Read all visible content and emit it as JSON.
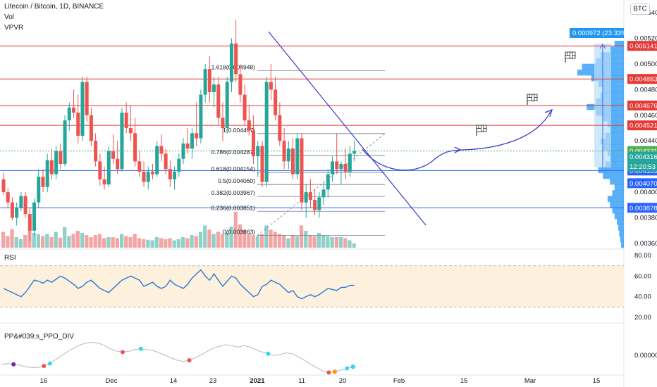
{
  "header": {
    "symbol_line": "Litecoin / Bitcoin, 1D, BINANCE",
    "indicator_vol": "Vol",
    "indicator_vpvr": "VPVR",
    "currency": "BTC"
  },
  "colors": {
    "up": "#26a69a",
    "down": "#ef5350",
    "vol_up": "#8fd0c8",
    "vol_down": "#f3a4a4",
    "hline_red": "#e53935",
    "hline_blue": "#2962ff",
    "hline_green": "#4caf50",
    "trend": "#3b3bcf",
    "rsi_line": "#2a7bd6",
    "rsi_band": "#fdf0dc",
    "vpvr": "#2196f3"
  },
  "chart_data": [
    {
      "type": "candlestick",
      "x_ticks": [
        "16",
        "Dec",
        "14",
        "23",
        "2021",
        "11",
        "20",
        "Feb",
        "15",
        "Mar",
        "15"
      ],
      "y_ticks": [
        "0.003600",
        "0.003800",
        "0.004000",
        "0.004200",
        "0.004400",
        "0.004600",
        "0.004800",
        "0.005000",
        "0.005200",
        "0.005400"
      ],
      "ylim": [
        0.0036,
        0.0054
      ],
      "y_scale": "linear",
      "ohlc": [
        [
          0.0041,
          0.00415,
          0.00398,
          0.004
        ],
        [
          0.004,
          0.00403,
          0.00388,
          0.00392
        ],
        [
          0.00392,
          0.00396,
          0.00378,
          0.0038
        ],
        [
          0.0038,
          0.00392,
          0.00374,
          0.00388
        ],
        [
          0.00388,
          0.004,
          0.00385,
          0.00397
        ],
        [
          0.00397,
          0.004,
          0.0038,
          0.00383
        ],
        [
          0.00383,
          0.00388,
          0.00362,
          0.0037
        ],
        [
          0.0037,
          0.00395,
          0.00366,
          0.00392
        ],
        [
          0.00392,
          0.00418,
          0.00388,
          0.00412
        ],
        [
          0.00412,
          0.00418,
          0.004,
          0.00404
        ],
        [
          0.00404,
          0.0043,
          0.004,
          0.00425
        ],
        [
          0.00425,
          0.00434,
          0.0041,
          0.00414
        ],
        [
          0.00414,
          0.00436,
          0.0041,
          0.00432
        ],
        [
          0.00432,
          0.00438,
          0.00418,
          0.00422
        ],
        [
          0.00422,
          0.0046,
          0.0042,
          0.00456
        ],
        [
          0.00456,
          0.0047,
          0.00448,
          0.00466
        ],
        [
          0.00466,
          0.0048,
          0.00458,
          0.00462
        ],
        [
          0.00462,
          0.00476,
          0.00438,
          0.00444
        ],
        [
          0.00444,
          0.0049,
          0.0044,
          0.00486
        ],
        [
          0.00486,
          0.0049,
          0.00455,
          0.0046
        ],
        [
          0.0046,
          0.00466,
          0.00436,
          0.0044
        ],
        [
          0.0044,
          0.00446,
          0.0042,
          0.00424
        ],
        [
          0.00424,
          0.0043,
          0.00405,
          0.0041
        ],
        [
          0.0041,
          0.0042,
          0.00402,
          0.00406
        ],
        [
          0.00406,
          0.00436,
          0.00404,
          0.00432
        ],
        [
          0.00432,
          0.00445,
          0.00422,
          0.00426
        ],
        [
          0.00426,
          0.0044,
          0.00414,
          0.00418
        ],
        [
          0.00418,
          0.00466,
          0.00416,
          0.00462
        ],
        [
          0.00462,
          0.0047,
          0.00446,
          0.0045
        ],
        [
          0.0045,
          0.00468,
          0.0044,
          0.00446
        ],
        [
          0.00446,
          0.00458,
          0.0042,
          0.00424
        ],
        [
          0.00424,
          0.00432,
          0.00412,
          0.00416
        ],
        [
          0.00416,
          0.00424,
          0.00404,
          0.00408
        ],
        [
          0.00408,
          0.0042,
          0.00402,
          0.00416
        ],
        [
          0.00416,
          0.00422,
          0.0041,
          0.00414
        ],
        [
          0.00414,
          0.0044,
          0.00412,
          0.00436
        ],
        [
          0.00436,
          0.00445,
          0.00424,
          0.0043
        ],
        [
          0.0043,
          0.00434,
          0.00414,
          0.00418
        ],
        [
          0.00418,
          0.00425,
          0.00404,
          0.0041
        ],
        [
          0.0041,
          0.0042,
          0.00402,
          0.00416
        ],
        [
          0.00416,
          0.0043,
          0.00412,
          0.00426
        ],
        [
          0.00426,
          0.00442,
          0.00422,
          0.00438
        ],
        [
          0.00438,
          0.0045,
          0.0043,
          0.00434
        ],
        [
          0.00434,
          0.0045,
          0.00426,
          0.00446
        ],
        [
          0.00446,
          0.0047,
          0.00436,
          0.00442
        ],
        [
          0.00442,
          0.0048,
          0.00438,
          0.00476
        ],
        [
          0.00476,
          0.005,
          0.0047,
          0.00496
        ],
        [
          0.00496,
          0.00506,
          0.0047,
          0.00478
        ],
        [
          0.00478,
          0.0049,
          0.00466,
          0.00484
        ],
        [
          0.00484,
          0.0049,
          0.00452,
          0.00458
        ],
        [
          0.00458,
          0.0047,
          0.0044,
          0.0045
        ],
        [
          0.0045,
          0.0049,
          0.00446,
          0.00486
        ],
        [
          0.00486,
          0.0052,
          0.00478,
          0.00516
        ],
        [
          0.00516,
          0.00534,
          0.00486,
          0.00492
        ],
        [
          0.00492,
          0.005,
          0.0047,
          0.00476
        ],
        [
          0.00476,
          0.00484,
          0.00452,
          0.00456
        ],
        [
          0.00456,
          0.00468,
          0.00444,
          0.00448
        ],
        [
          0.00448,
          0.0046,
          0.00422,
          0.00428
        ],
        [
          0.00428,
          0.0044,
          0.00412,
          0.00436
        ],
        [
          0.00436,
          0.0044,
          0.00404,
          0.00408
        ],
        [
          0.00408,
          0.0049,
          0.00404,
          0.00486
        ],
        [
          0.00486,
          0.005,
          0.00472,
          0.0048
        ],
        [
          0.0048,
          0.0049,
          0.00456,
          0.0046
        ],
        [
          0.0046,
          0.0047,
          0.00436,
          0.0044
        ],
        [
          0.0044,
          0.0045,
          0.00418,
          0.00424
        ],
        [
          0.00424,
          0.0044,
          0.00418,
          0.00434
        ],
        [
          0.00434,
          0.00442,
          0.0041,
          0.00414
        ],
        [
          0.00414,
          0.00446,
          0.0041,
          0.00442
        ],
        [
          0.00442,
          0.00446,
          0.00386,
          0.00392
        ],
        [
          0.00392,
          0.00406,
          0.0038,
          0.004
        ],
        [
          0.004,
          0.0041,
          0.00388,
          0.00394
        ],
        [
          0.00394,
          0.00402,
          0.00382,
          0.00386
        ],
        [
          0.00386,
          0.004,
          0.0038,
          0.00396
        ],
        [
          0.00396,
          0.00408,
          0.0039,
          0.00402
        ],
        [
          0.00402,
          0.00418,
          0.00396,
          0.00414
        ],
        [
          0.00414,
          0.00428,
          0.00408,
          0.00424
        ],
        [
          0.00424,
          0.00446,
          0.00414,
          0.00418
        ],
        [
          0.00418,
          0.00424,
          0.00406,
          0.00422
        ],
        [
          0.00422,
          0.00434,
          0.0041,
          0.00416
        ],
        [
          0.00416,
          0.00436,
          0.00412,
          0.0043
        ],
        [
          0.0043,
          0.0044,
          0.00424,
          0.00432
        ]
      ],
      "volume": [
        [
          3.0,
          0
        ],
        [
          2.2,
          0
        ],
        [
          3.5,
          0
        ],
        [
          2.0,
          1
        ],
        [
          1.6,
          1
        ],
        [
          2.4,
          0
        ],
        [
          3.4,
          0
        ],
        [
          2.8,
          1
        ],
        [
          2.6,
          1
        ],
        [
          2.2,
          0
        ],
        [
          2.6,
          1
        ],
        [
          2.0,
          0
        ],
        [
          3.0,
          1
        ],
        [
          1.9,
          0
        ],
        [
          3.9,
          1
        ],
        [
          2.2,
          1
        ],
        [
          2.6,
          0
        ],
        [
          3.2,
          0
        ],
        [
          2.8,
          1
        ],
        [
          2.4,
          0
        ],
        [
          2.0,
          0
        ],
        [
          2.4,
          0
        ],
        [
          2.6,
          0
        ],
        [
          1.8,
          0
        ],
        [
          2.0,
          1
        ],
        [
          2.0,
          0
        ],
        [
          1.8,
          0
        ],
        [
          2.6,
          1
        ],
        [
          2.2,
          0
        ],
        [
          2.0,
          0
        ],
        [
          2.6,
          0
        ],
        [
          1.8,
          0
        ],
        [
          1.6,
          0
        ],
        [
          1.5,
          1
        ],
        [
          1.4,
          1
        ],
        [
          2.0,
          1
        ],
        [
          1.8,
          0
        ],
        [
          1.6,
          0
        ],
        [
          1.8,
          0
        ],
        [
          1.4,
          1
        ],
        [
          1.6,
          1
        ],
        [
          2.0,
          1
        ],
        [
          1.8,
          0
        ],
        [
          2.4,
          1
        ],
        [
          2.2,
          0
        ],
        [
          3.0,
          1
        ],
        [
          4.2,
          1
        ],
        [
          3.4,
          0
        ],
        [
          2.6,
          1
        ],
        [
          3.0,
          0
        ],
        [
          2.6,
          0
        ],
        [
          2.8,
          1
        ],
        [
          4.0,
          1
        ],
        [
          6.8,
          0
        ],
        [
          4.4,
          0
        ],
        [
          3.4,
          0
        ],
        [
          2.6,
          0
        ],
        [
          2.4,
          0
        ],
        [
          2.2,
          1
        ],
        [
          2.6,
          0
        ],
        [
          4.2,
          1
        ],
        [
          3.4,
          0
        ],
        [
          3.0,
          0
        ],
        [
          2.6,
          0
        ],
        [
          2.4,
          0
        ],
        [
          1.8,
          1
        ],
        [
          2.4,
          0
        ],
        [
          2.2,
          1
        ],
        [
          4.2,
          0
        ],
        [
          3.2,
          1
        ],
        [
          2.4,
          0
        ],
        [
          2.2,
          0
        ],
        [
          2.8,
          1
        ],
        [
          2.4,
          1
        ],
        [
          2.2,
          1
        ],
        [
          2.0,
          1
        ],
        [
          2.0,
          0
        ],
        [
          2.0,
          1
        ],
        [
          1.8,
          0
        ],
        [
          1.4,
          1
        ],
        [
          0.8,
          1
        ]
      ]
    },
    {
      "type": "line",
      "name": "RSI",
      "y_ticks": [
        "20.00",
        "40.00",
        "60.00",
        "80.00"
      ],
      "ylim": [
        20,
        80
      ],
      "band": [
        30,
        70
      ],
      "values": [
        48,
        46,
        44,
        42,
        40,
        44,
        50,
        56,
        55,
        53,
        56,
        54,
        57,
        60,
        58,
        55,
        52,
        48,
        50,
        54,
        56,
        52,
        48,
        46,
        44,
        48,
        52,
        56,
        58,
        60,
        58,
        56,
        50,
        52,
        54,
        50,
        48,
        50,
        56,
        52,
        50,
        48,
        52,
        58,
        62,
        66,
        60,
        56,
        62,
        56,
        50,
        55,
        60,
        58,
        52,
        48,
        44,
        40,
        42,
        50,
        52,
        56,
        54,
        52,
        48,
        44,
        46,
        40,
        38,
        40,
        42,
        40,
        42,
        45,
        48,
        47,
        46,
        49,
        49,
        51,
        51
      ]
    },
    {
      "type": "line",
      "name": "PP&#039;s_PPO_DIV",
      "y_ticks": [
        "0.000000"
      ],
      "divergence_points": [
        {
          "i": 2,
          "v": -0.22,
          "c": "#7b1fa2"
        },
        {
          "i": 7,
          "v": -0.3,
          "c": "#ef5350"
        },
        {
          "i": 8,
          "v": -0.3,
          "c": "#33d6f5"
        },
        {
          "i": 20,
          "v": 0.32,
          "c": "#ef5350"
        },
        {
          "i": 23,
          "v": 0.08,
          "c": "#33d6f5"
        },
        {
          "i": 31,
          "v": 0.12,
          "c": "#ef5350"
        },
        {
          "i": 44,
          "v": -0.15,
          "c": "#33d6f5"
        },
        {
          "i": 54,
          "v": 0.22,
          "c": "#ef5350"
        },
        {
          "i": 55,
          "v": 0.26,
          "c": "#ff9800"
        },
        {
          "i": 57,
          "v": 0.2,
          "c": "#33d6f5"
        },
        {
          "i": 59,
          "v": 0.24,
          "c": "#ef5350"
        },
        {
          "i": 69,
          "v": 0.0,
          "c": "#33d6f5"
        },
        {
          "i": 73,
          "v": 0.06,
          "c": "#ef5350"
        },
        {
          "i": 83,
          "v": -0.42,
          "c": "#33d6f5"
        }
      ],
      "values": [
        -0.22,
        -0.2,
        -0.22,
        -0.24,
        -0.28,
        -0.3,
        -0.3,
        -0.26,
        -0.2,
        -0.1,
        0.0,
        0.1,
        0.18,
        0.26,
        0.3,
        0.32,
        0.3,
        0.24,
        0.16,
        0.1,
        0.08,
        0.1,
        0.14,
        0.16,
        0.14,
        0.12,
        0.06,
        0.0,
        -0.06,
        -0.12,
        -0.15,
        -0.12,
        -0.06,
        0.02,
        0.1,
        0.18,
        0.22,
        0.26,
        0.24,
        0.2,
        0.24,
        0.2,
        0.14,
        0.08,
        0.04,
        0.0,
        0.02,
        0.06,
        0.04,
        -0.04,
        -0.12,
        -0.22,
        -0.3,
        -0.38,
        -0.42,
        -0.4,
        -0.36,
        -0.32,
        -0.28
      ]
    }
  ],
  "horizontal_levels": [
    {
      "label": "0.005141",
      "value": 0.005141,
      "color": "red"
    },
    {
      "label": "0.004883",
      "value": 0.004883,
      "color": "red"
    },
    {
      "label": "0.004676",
      "value": 0.004676,
      "color": "red"
    },
    {
      "label": "0.004521",
      "value": 0.004521,
      "color": "red"
    },
    {
      "label": "0.004321",
      "value": 0.004321,
      "color": "green"
    },
    {
      "label": "0.004169",
      "value": 0.004169,
      "color": "blue"
    },
    {
      "label": "0.003878",
      "value": 0.003878,
      "color": "blue"
    }
  ],
  "price_tags": {
    "last_price": "0.004316",
    "countdown": "12:20:53",
    "level_4070": "0.004070",
    "measure": "0.000972 (23.33%)"
  },
  "fib": [
    {
      "label": "1.618(0.004948)",
      "value": 0.004948
    },
    {
      "label": "1(0.004457)",
      "value": 0.004457
    },
    {
      "label": "0.786(0.004287)",
      "value": 0.004287
    },
    {
      "label": "0.618(0.004154)",
      "value": 0.004154
    },
    {
      "label": "0.5(0.004060)",
      "value": 0.00406
    },
    {
      "label": "0.382(0.003967)",
      "value": 0.003967
    },
    {
      "label": "0.236(0.003851)",
      "value": 0.003851
    },
    {
      "label": "0(0.003663)",
      "value": 0.003663
    }
  ],
  "panes": {
    "rsi_title": "RSI",
    "ppo_title": "PP&#039;s_PPO_DIV"
  }
}
